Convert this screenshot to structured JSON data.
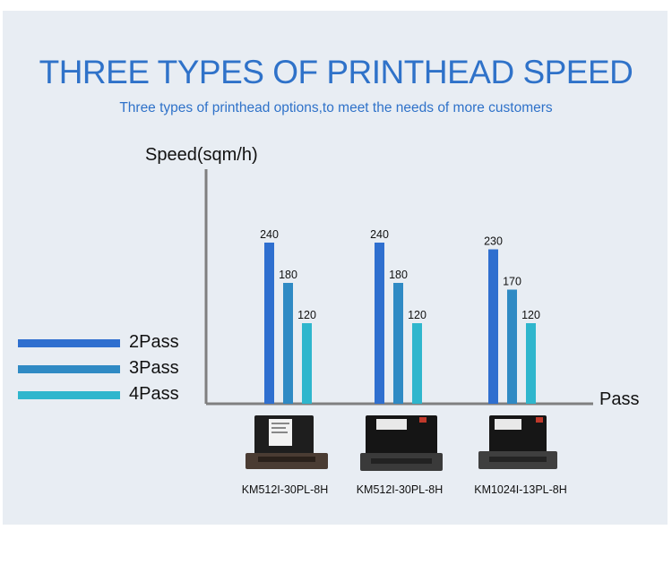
{
  "title": "THREE TYPES OF PRINTHEAD SPEED",
  "subtitle": "Three types of printhead options,to meet the needs of more customers",
  "colors": {
    "title": "#2f72c9",
    "background": "#e8edf3",
    "axis": "#7f7f7f",
    "pass2": "#2f6fcf",
    "pass3": "#2f8ac4",
    "pass4": "#2fb6cd"
  },
  "chart_data": {
    "type": "bar",
    "ylabel": "Speed(sqm/h)",
    "xlabel": "Pass",
    "categories": [
      "KM512I-30PL-8H",
      "KM512I-30PL-8H",
      "KM1024I-13PL-8H"
    ],
    "series": [
      {
        "name": "2Pass",
        "values": [
          240,
          240,
          230
        ]
      },
      {
        "name": "3Pass",
        "values": [
          180,
          180,
          170
        ]
      },
      {
        "name": "4Pass",
        "values": [
          120,
          120,
          120
        ]
      }
    ],
    "ylim": [
      0,
      300
    ],
    "grid": false,
    "legend_position": "left",
    "data_labels": true
  },
  "printheads": [
    {
      "name": "KM512I-30PL-8H",
      "icon": "printhead-icon"
    },
    {
      "name": "KM512I-30PL-8H",
      "icon": "printhead-icon"
    },
    {
      "name": "KM1024I-13PL-8H",
      "icon": "printhead-icon"
    }
  ]
}
